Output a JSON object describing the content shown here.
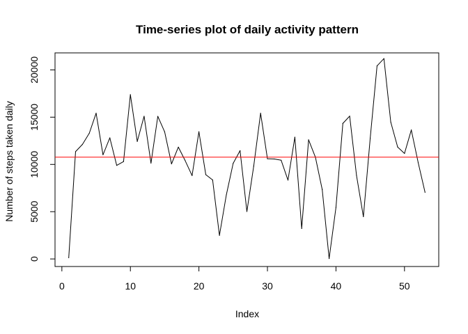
{
  "chart_data": {
    "type": "line",
    "title": "Time-series plot of daily activity pattern",
    "xlabel": "Index",
    "ylabel": "Number of steps taken daily",
    "xlim": [
      -1,
      55
    ],
    "ylim": [
      -800,
      21800
    ],
    "xticks": [
      0,
      10,
      20,
      30,
      40,
      50
    ],
    "yticks": [
      0,
      5000,
      10000,
      15000,
      20000
    ],
    "x": [
      1,
      2,
      3,
      4,
      5,
      6,
      7,
      8,
      9,
      10,
      11,
      12,
      13,
      14,
      15,
      16,
      17,
      18,
      19,
      20,
      21,
      22,
      23,
      24,
      25,
      26,
      27,
      28,
      29,
      30,
      31,
      32,
      33,
      34,
      35,
      36,
      37,
      38,
      39,
      40,
      41,
      42,
      43,
      44,
      45,
      46,
      47,
      48,
      49,
      50,
      51,
      52,
      53
    ],
    "series": [
      {
        "name": "steps",
        "color": "#000000",
        "values": [
          126,
          11352,
          12116,
          13294,
          15420,
          11015,
          12811,
          9900,
          10304,
          17382,
          12426,
          15098,
          10139,
          15084,
          13452,
          10056,
          11829,
          10395,
          8821,
          13460,
          8918,
          8355,
          2492,
          6778,
          10119,
          11458,
          5018,
          9819,
          15414,
          10600,
          10571,
          10439,
          8334,
          12883,
          3219,
          12608,
          10765,
          7336,
          41,
          5441,
          14339,
          15110,
          8841,
          4472,
          12787,
          20427,
          21194,
          14478,
          11834,
          11162,
          13646,
          10183,
          7047
        ]
      }
    ],
    "hline": {
      "value": 10766,
      "color": "#ff0000"
    }
  }
}
